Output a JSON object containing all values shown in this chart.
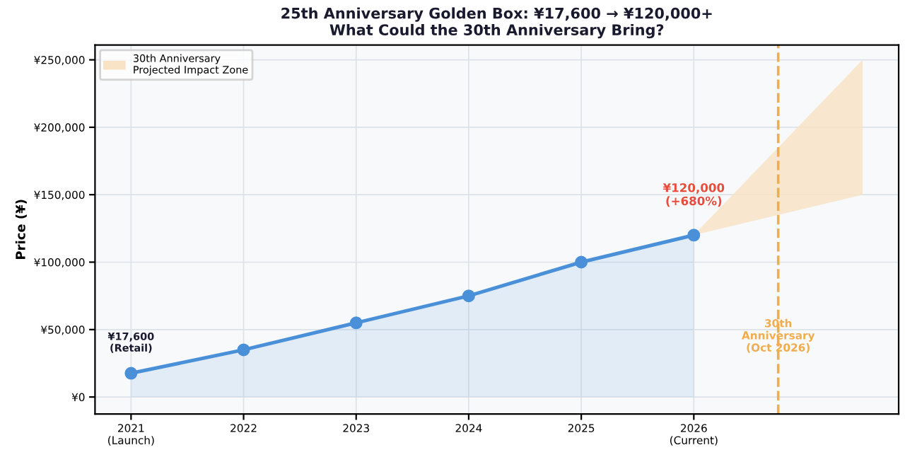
{
  "chart_data": {
    "type": "area",
    "title": "25th Anniversary Golden Box: ¥17,600 → ¥120,000+\nWhat Could the 30th Anniversary Bring?",
    "ylabel": "Price (¥)",
    "x": [
      2021,
      2022,
      2023,
      2024,
      2025,
      2026
    ],
    "series": [
      {
        "color": "#4a90d9",
        "marker": "circle",
        "values": [
          17600,
          35000,
          55000,
          75000,
          100000,
          120000
        ]
      },
      {
        "name": "30th Anniversary\nProjected Impact Zone",
        "color": "#f8e3c6",
        "x": [
          2026,
          2027.5
        ],
        "values": [
          null,
          null
        ],
        "lower": [
          120000,
          150000
        ],
        "upper": [
          120000,
          250000
        ]
      }
    ],
    "xlim": [
      2020.68,
      2027.82
    ],
    "ylim": [
      -12600,
      261000
    ],
    "xticks": [
      {
        "value": 2021,
        "label": "2021\n(Launch)"
      },
      2022,
      2023,
      2024,
      2025,
      {
        "value": 2026,
        "label": "2026\n(Current)"
      }
    ],
    "yticks": [
      {
        "value": 0,
        "label": "¥0"
      },
      {
        "value": 50000,
        "label": "¥50,000"
      },
      {
        "value": 100000,
        "label": "¥100,000"
      },
      {
        "value": 150000,
        "label": "¥150,000"
      },
      {
        "value": 200000,
        "label": "¥200,000"
      },
      {
        "value": 250000,
        "label": "¥250,000"
      }
    ],
    "ref_lines": [
      {
        "axis": "x",
        "value": 2026.75,
        "label": "30th\nAnniversary\n(Oct 2026)",
        "color": "#f0ad4e",
        "line_style": "dashed"
      }
    ],
    "annotations": [
      {
        "text": "¥17,600\n(Retail)",
        "x": 2021,
        "y": 17600
      },
      {
        "text": "¥120,000\n(+680%)",
        "x": 2026,
        "y": 120000
      }
    ],
    "grid": true,
    "legend": "top left"
  }
}
